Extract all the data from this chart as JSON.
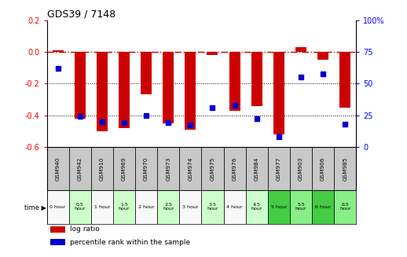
{
  "title": "GDS39 / 7148",
  "samples": [
    "GSM940",
    "GSM942",
    "GSM910",
    "GSM969",
    "GSM970",
    "GSM973",
    "GSM974",
    "GSM975",
    "GSM976",
    "GSM984",
    "GSM977",
    "GSM903",
    "GSM906",
    "GSM985"
  ],
  "time_labels": [
    "0 hour",
    "0.5\nhour",
    "1 hour",
    "1.5\nhour",
    "2 hour",
    "2.5\nhour",
    "3 hour",
    "3.5\nhour",
    "4 hour",
    "4.5\nhour",
    "5 hour",
    "5.5\nhour",
    "6 hour",
    "6.5\nhour"
  ],
  "log_ratio": [
    0.01,
    -0.42,
    -0.5,
    -0.48,
    -0.27,
    -0.45,
    -0.49,
    -0.02,
    -0.37,
    -0.34,
    -0.52,
    0.03,
    -0.05,
    -0.35
  ],
  "percentile": [
    62,
    24,
    20,
    19,
    25,
    19,
    17,
    31,
    33,
    22,
    8,
    55,
    58,
    18
  ],
  "ylim_left": [
    -0.6,
    0.2
  ],
  "ylim_right": [
    0,
    100
  ],
  "yticks_left": [
    -0.6,
    -0.4,
    -0.2,
    0.0,
    0.2
  ],
  "yticks_right": [
    0,
    25,
    50,
    75,
    100
  ],
  "bar_color": "#cc0000",
  "dot_color": "#0000cc",
  "dash_color": "#cc0000",
  "grid_color": "#000000",
  "bg_color": "#ffffff",
  "gsm_bg": "#c8c8c8",
  "bar_width": 0.5,
  "legend_red": "log ratio",
  "legend_blue": "percentile rank within the sample",
  "time_colors": [
    "#f8f8f8",
    "#ccffcc",
    "#f8f8f8",
    "#ccffcc",
    "#f8f8f8",
    "#ccffcc",
    "#f8f8f8",
    "#ccffcc",
    "#f8f8f8",
    "#ccffcc",
    "#44cc44",
    "#88ee88",
    "#44cc44",
    "#88ee88"
  ]
}
